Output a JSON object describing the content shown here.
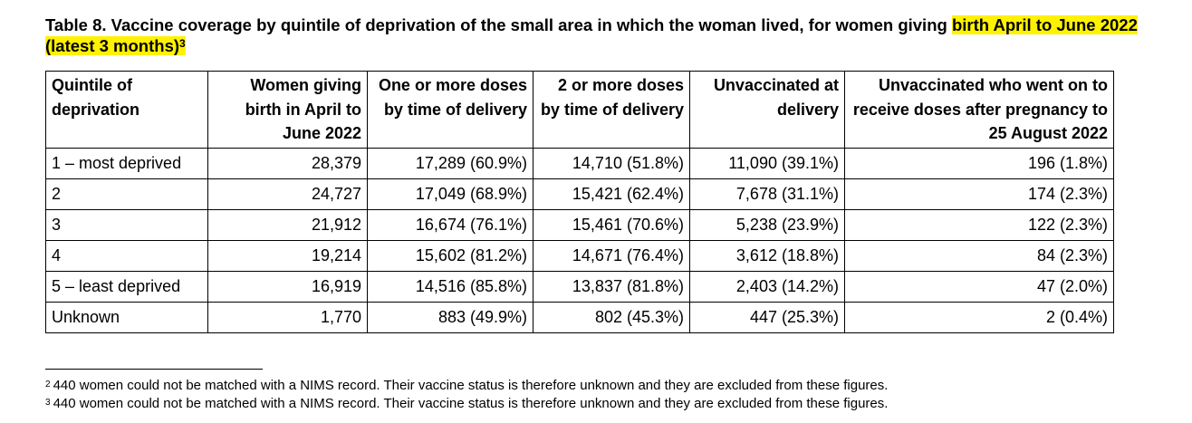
{
  "caption": {
    "main": "Table 8. Vaccine coverage by quintile of deprivation of the small area in which the woman lived, for women giving ",
    "highlight": "birth April to June 2022 (latest 3 months)",
    "footnote_ref": "3",
    "highlight_color": "#fff200"
  },
  "table": {
    "headers": [
      "Quintile of deprivation",
      "Women giving birth in April to June 2022",
      "One or more doses by time of delivery",
      "2 or more doses by time of delivery",
      "Unvaccinated at delivery",
      "Unvaccinated who went on to receive doses after pregnancy to 25 August 2022"
    ],
    "rows": [
      [
        "1 – most deprived",
        "28,379",
        "17,289 (60.9%)",
        "14,710 (51.8%)",
        "11,090 (39.1%)",
        "196 (1.8%)"
      ],
      [
        "2",
        "24,727",
        "17,049 (68.9%)",
        "15,421 (62.4%)",
        "7,678 (31.1%)",
        "174 (2.3%)"
      ],
      [
        "3",
        "21,912",
        "16,674 (76.1%)",
        "15,461 (70.6%)",
        "5,238 (23.9%)",
        "122 (2.3%)"
      ],
      [
        "4",
        "19,214",
        "15,602 (81.2%)",
        "14,671 (76.4%)",
        "3,612 (18.8%)",
        "84 (2.3%)"
      ],
      [
        "5 – least deprived",
        "16,919",
        "14,516 (85.8%)",
        "13,837 (81.8%)",
        "2,403 (14.2%)",
        "47 (2.0%)"
      ],
      [
        "Unknown",
        "1,770",
        "883 (49.9%)",
        "802 (45.3%)",
        "447 (25.3%)",
        "2 (0.4%)"
      ]
    ]
  },
  "footnotes": [
    {
      "num": "2",
      "text": "440 women could not be matched with a NIMS record. Their vaccine status is therefore unknown and they are excluded from these figures."
    },
    {
      "num": "3",
      "text": "440 women could not be matched with a NIMS record. Their vaccine status is therefore unknown and they are excluded from these figures."
    }
  ]
}
